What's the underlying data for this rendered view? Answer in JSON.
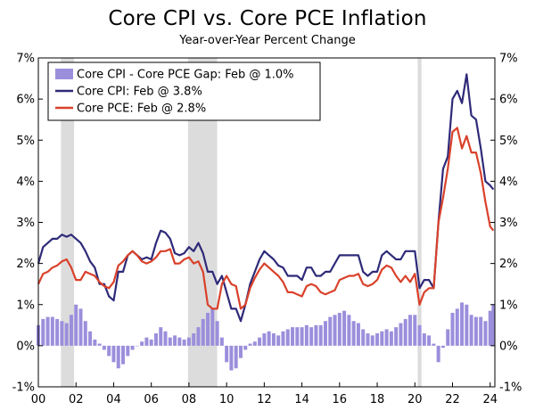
{
  "chart_data": {
    "type": "line",
    "title": "Core CPI vs. Core PCE Inflation",
    "subtitle": "Year-over-Year Percent Change",
    "xlabel": "",
    "ylabel": "",
    "xlim": [
      2000,
      2024.25
    ],
    "ylim": [
      -1,
      7
    ],
    "x_ticks": [
      2000,
      2002,
      2004,
      2006,
      2008,
      2010,
      2012,
      2014,
      2016,
      2018,
      2020,
      2022,
      2024
    ],
    "x_tick_labels": [
      "00",
      "02",
      "04",
      "06",
      "08",
      "10",
      "12",
      "14",
      "16",
      "18",
      "20",
      "22",
      "24"
    ],
    "y_ticks": [
      -1,
      0,
      1,
      2,
      3,
      4,
      5,
      6,
      7
    ],
    "y_tick_labels": [
      "-1%",
      "0%",
      "1%",
      "2%",
      "3%",
      "4%",
      "5%",
      "6%",
      "7%"
    ],
    "grid": false,
    "legend_position": "top-left",
    "recessions": [
      [
        2001.2,
        2001.9
      ],
      [
        2007.95,
        2009.5
      ],
      [
        2020.15,
        2020.35
      ]
    ],
    "series": [
      {
        "name": "Core CPI - Core PCE Gap: Feb @ 1.0%",
        "type": "bar",
        "color": "#9b8fdc",
        "points": [
          [
            2000.0,
            0.5
          ],
          [
            2000.25,
            0.65
          ],
          [
            2000.5,
            0.7
          ],
          [
            2000.75,
            0.7
          ],
          [
            2001.0,
            0.65
          ],
          [
            2001.25,
            0.6
          ],
          [
            2001.5,
            0.55
          ],
          [
            2001.75,
            0.75
          ],
          [
            2002.0,
            1.0
          ],
          [
            2002.25,
            0.9
          ],
          [
            2002.5,
            0.6
          ],
          [
            2002.75,
            0.35
          ],
          [
            2003.0,
            0.15
          ],
          [
            2003.25,
            0.05
          ],
          [
            2003.5,
            -0.1
          ],
          [
            2003.75,
            -0.25
          ],
          [
            2004.0,
            -0.4
          ],
          [
            2004.25,
            -0.55
          ],
          [
            2004.5,
            -0.45
          ],
          [
            2004.75,
            -0.25
          ],
          [
            2005.0,
            -0.1
          ],
          [
            2005.25,
            0.0
          ],
          [
            2005.5,
            0.1
          ],
          [
            2005.75,
            0.2
          ],
          [
            2006.0,
            0.15
          ],
          [
            2006.25,
            0.3
          ],
          [
            2006.5,
            0.45
          ],
          [
            2006.75,
            0.35
          ],
          [
            2007.0,
            0.2
          ],
          [
            2007.25,
            0.25
          ],
          [
            2007.5,
            0.2
          ],
          [
            2007.75,
            0.15
          ],
          [
            2008.0,
            0.2
          ],
          [
            2008.25,
            0.3
          ],
          [
            2008.5,
            0.45
          ],
          [
            2008.75,
            0.65
          ],
          [
            2009.0,
            0.8
          ],
          [
            2009.25,
            0.9
          ],
          [
            2009.5,
            0.6
          ],
          [
            2009.75,
            0.2
          ],
          [
            2010.0,
            -0.4
          ],
          [
            2010.25,
            -0.6
          ],
          [
            2010.5,
            -0.55
          ],
          [
            2010.75,
            -0.3
          ],
          [
            2011.0,
            -0.1
          ],
          [
            2011.25,
            0.05
          ],
          [
            2011.5,
            0.1
          ],
          [
            2011.75,
            0.2
          ],
          [
            2012.0,
            0.3
          ],
          [
            2012.25,
            0.35
          ],
          [
            2012.5,
            0.3
          ],
          [
            2012.75,
            0.25
          ],
          [
            2013.0,
            0.35
          ],
          [
            2013.25,
            0.4
          ],
          [
            2013.5,
            0.45
          ],
          [
            2013.75,
            0.45
          ],
          [
            2014.0,
            0.45
          ],
          [
            2014.25,
            0.5
          ],
          [
            2014.5,
            0.45
          ],
          [
            2014.75,
            0.5
          ],
          [
            2015.0,
            0.5
          ],
          [
            2015.25,
            0.6
          ],
          [
            2015.5,
            0.7
          ],
          [
            2015.75,
            0.75
          ],
          [
            2016.0,
            0.8
          ],
          [
            2016.25,
            0.85
          ],
          [
            2016.5,
            0.75
          ],
          [
            2016.75,
            0.6
          ],
          [
            2017.0,
            0.55
          ],
          [
            2017.25,
            0.4
          ],
          [
            2017.5,
            0.3
          ],
          [
            2017.75,
            0.25
          ],
          [
            2018.0,
            0.3
          ],
          [
            2018.25,
            0.35
          ],
          [
            2018.5,
            0.4
          ],
          [
            2018.75,
            0.35
          ],
          [
            2019.0,
            0.45
          ],
          [
            2019.25,
            0.55
          ],
          [
            2019.5,
            0.65
          ],
          [
            2019.75,
            0.75
          ],
          [
            2020.0,
            0.75
          ],
          [
            2020.25,
            0.5
          ],
          [
            2020.5,
            0.3
          ],
          [
            2020.75,
            0.25
          ],
          [
            2021.0,
            0.05
          ],
          [
            2021.25,
            -0.4
          ],
          [
            2021.5,
            -0.05
          ],
          [
            2021.75,
            0.4
          ],
          [
            2022.0,
            0.8
          ],
          [
            2022.25,
            0.9
          ],
          [
            2022.5,
            1.05
          ],
          [
            2022.75,
            1.0
          ],
          [
            2023.0,
            0.75
          ],
          [
            2023.25,
            0.7
          ],
          [
            2023.5,
            0.7
          ],
          [
            2023.75,
            0.6
          ],
          [
            2024.0,
            0.85
          ],
          [
            2024.17,
            1.0
          ]
        ]
      },
      {
        "name": "Core CPI: Feb @ 3.8%",
        "type": "line",
        "color": "#2e2a78",
        "points": [
          [
            2000.0,
            2.0
          ],
          [
            2000.25,
            2.4
          ],
          [
            2000.5,
            2.5
          ],
          [
            2000.75,
            2.6
          ],
          [
            2001.0,
            2.6
          ],
          [
            2001.25,
            2.7
          ],
          [
            2001.5,
            2.65
          ],
          [
            2001.75,
            2.7
          ],
          [
            2002.0,
            2.6
          ],
          [
            2002.25,
            2.5
          ],
          [
            2002.5,
            2.3
          ],
          [
            2002.75,
            2.05
          ],
          [
            2003.0,
            1.9
          ],
          [
            2003.25,
            1.5
          ],
          [
            2003.5,
            1.5
          ],
          [
            2003.75,
            1.2
          ],
          [
            2004.0,
            1.1
          ],
          [
            2004.25,
            1.8
          ],
          [
            2004.5,
            1.8
          ],
          [
            2004.75,
            2.2
          ],
          [
            2005.0,
            2.3
          ],
          [
            2005.25,
            2.2
          ],
          [
            2005.5,
            2.1
          ],
          [
            2005.75,
            2.15
          ],
          [
            2006.0,
            2.1
          ],
          [
            2006.25,
            2.5
          ],
          [
            2006.5,
            2.8
          ],
          [
            2006.75,
            2.75
          ],
          [
            2007.0,
            2.6
          ],
          [
            2007.25,
            2.25
          ],
          [
            2007.5,
            2.2
          ],
          [
            2007.75,
            2.25
          ],
          [
            2008.0,
            2.4
          ],
          [
            2008.25,
            2.3
          ],
          [
            2008.5,
            2.5
          ],
          [
            2008.75,
            2.25
          ],
          [
            2009.0,
            1.8
          ],
          [
            2009.25,
            1.8
          ],
          [
            2009.5,
            1.5
          ],
          [
            2009.75,
            1.7
          ],
          [
            2010.0,
            1.3
          ],
          [
            2010.25,
            0.9
          ],
          [
            2010.5,
            0.9
          ],
          [
            2010.75,
            0.6
          ],
          [
            2011.0,
            1.0
          ],
          [
            2011.25,
            1.5
          ],
          [
            2011.5,
            1.8
          ],
          [
            2011.75,
            2.1
          ],
          [
            2012.0,
            2.3
          ],
          [
            2012.25,
            2.2
          ],
          [
            2012.5,
            2.1
          ],
          [
            2012.75,
            1.95
          ],
          [
            2013.0,
            1.9
          ],
          [
            2013.25,
            1.7
          ],
          [
            2013.5,
            1.7
          ],
          [
            2013.75,
            1.7
          ],
          [
            2014.0,
            1.6
          ],
          [
            2014.25,
            1.9
          ],
          [
            2014.5,
            1.9
          ],
          [
            2014.75,
            1.7
          ],
          [
            2015.0,
            1.7
          ],
          [
            2015.25,
            1.8
          ],
          [
            2015.5,
            1.8
          ],
          [
            2015.75,
            2.0
          ],
          [
            2016.0,
            2.2
          ],
          [
            2016.25,
            2.2
          ],
          [
            2016.5,
            2.2
          ],
          [
            2016.75,
            2.2
          ],
          [
            2017.0,
            2.2
          ],
          [
            2017.25,
            1.8
          ],
          [
            2017.5,
            1.7
          ],
          [
            2017.75,
            1.8
          ],
          [
            2018.0,
            1.8
          ],
          [
            2018.25,
            2.2
          ],
          [
            2018.5,
            2.3
          ],
          [
            2018.75,
            2.2
          ],
          [
            2019.0,
            2.1
          ],
          [
            2019.25,
            2.1
          ],
          [
            2019.5,
            2.3
          ],
          [
            2019.75,
            2.3
          ],
          [
            2020.0,
            2.3
          ],
          [
            2020.25,
            1.4
          ],
          [
            2020.5,
            1.6
          ],
          [
            2020.75,
            1.6
          ],
          [
            2021.0,
            1.4
          ],
          [
            2021.25,
            3.0
          ],
          [
            2021.5,
            4.3
          ],
          [
            2021.75,
            4.6
          ],
          [
            2022.0,
            6.0
          ],
          [
            2022.25,
            6.2
          ],
          [
            2022.5,
            5.9
          ],
          [
            2022.75,
            6.6
          ],
          [
            2023.0,
            5.6
          ],
          [
            2023.25,
            5.5
          ],
          [
            2023.5,
            4.8
          ],
          [
            2023.75,
            4.0
          ],
          [
            2024.0,
            3.9
          ],
          [
            2024.17,
            3.8
          ]
        ]
      },
      {
        "name": "Core PCE: Feb @ 2.8%",
        "type": "line",
        "color": "#d9412a",
        "points": [
          [
            2000.0,
            1.5
          ],
          [
            2000.25,
            1.75
          ],
          [
            2000.5,
            1.8
          ],
          [
            2000.75,
            1.9
          ],
          [
            2001.0,
            1.95
          ],
          [
            2001.25,
            2.05
          ],
          [
            2001.5,
            2.1
          ],
          [
            2001.75,
            1.9
          ],
          [
            2002.0,
            1.6
          ],
          [
            2002.25,
            1.6
          ],
          [
            2002.5,
            1.8
          ],
          [
            2002.75,
            1.75
          ],
          [
            2003.0,
            1.7
          ],
          [
            2003.25,
            1.55
          ],
          [
            2003.5,
            1.45
          ],
          [
            2003.75,
            1.4
          ],
          [
            2004.0,
            1.55
          ],
          [
            2004.25,
            1.95
          ],
          [
            2004.5,
            2.05
          ],
          [
            2004.75,
            2.2
          ],
          [
            2005.0,
            2.3
          ],
          [
            2005.25,
            2.2
          ],
          [
            2005.5,
            2.05
          ],
          [
            2005.75,
            2.0
          ],
          [
            2006.0,
            2.05
          ],
          [
            2006.25,
            2.15
          ],
          [
            2006.5,
            2.3
          ],
          [
            2006.75,
            2.3
          ],
          [
            2007.0,
            2.35
          ],
          [
            2007.25,
            2.0
          ],
          [
            2007.5,
            2.0
          ],
          [
            2007.75,
            2.1
          ],
          [
            2008.0,
            2.15
          ],
          [
            2008.25,
            2.0
          ],
          [
            2008.5,
            2.05
          ],
          [
            2008.75,
            1.8
          ],
          [
            2009.0,
            1.0
          ],
          [
            2009.25,
            0.9
          ],
          [
            2009.5,
            0.9
          ],
          [
            2009.75,
            1.5
          ],
          [
            2010.0,
            1.7
          ],
          [
            2010.25,
            1.5
          ],
          [
            2010.5,
            1.45
          ],
          [
            2010.75,
            0.9
          ],
          [
            2011.0,
            1.0
          ],
          [
            2011.25,
            1.4
          ],
          [
            2011.5,
            1.65
          ],
          [
            2011.75,
            1.85
          ],
          [
            2012.0,
            2.0
          ],
          [
            2012.25,
            1.9
          ],
          [
            2012.5,
            1.8
          ],
          [
            2012.75,
            1.7
          ],
          [
            2013.0,
            1.55
          ],
          [
            2013.25,
            1.3
          ],
          [
            2013.5,
            1.3
          ],
          [
            2013.75,
            1.25
          ],
          [
            2014.0,
            1.2
          ],
          [
            2014.25,
            1.45
          ],
          [
            2014.5,
            1.5
          ],
          [
            2014.75,
            1.45
          ],
          [
            2015.0,
            1.3
          ],
          [
            2015.25,
            1.25
          ],
          [
            2015.5,
            1.3
          ],
          [
            2015.75,
            1.35
          ],
          [
            2016.0,
            1.6
          ],
          [
            2016.25,
            1.65
          ],
          [
            2016.5,
            1.7
          ],
          [
            2016.75,
            1.7
          ],
          [
            2017.0,
            1.75
          ],
          [
            2017.25,
            1.5
          ],
          [
            2017.5,
            1.45
          ],
          [
            2017.75,
            1.5
          ],
          [
            2018.0,
            1.6
          ],
          [
            2018.25,
            1.85
          ],
          [
            2018.5,
            1.95
          ],
          [
            2018.75,
            1.9
          ],
          [
            2019.0,
            1.7
          ],
          [
            2019.25,
            1.55
          ],
          [
            2019.5,
            1.7
          ],
          [
            2019.75,
            1.55
          ],
          [
            2020.0,
            1.75
          ],
          [
            2020.25,
            1.0
          ],
          [
            2020.5,
            1.3
          ],
          [
            2020.75,
            1.4
          ],
          [
            2021.0,
            1.4
          ],
          [
            2021.25,
            3.0
          ],
          [
            2021.5,
            3.6
          ],
          [
            2021.75,
            4.3
          ],
          [
            2022.0,
            5.2
          ],
          [
            2022.25,
            5.3
          ],
          [
            2022.5,
            4.8
          ],
          [
            2022.75,
            5.1
          ],
          [
            2023.0,
            4.7
          ],
          [
            2023.25,
            4.7
          ],
          [
            2023.5,
            4.2
          ],
          [
            2023.75,
            3.5
          ],
          [
            2024.0,
            2.9
          ],
          [
            2024.17,
            2.8
          ]
        ]
      }
    ]
  }
}
